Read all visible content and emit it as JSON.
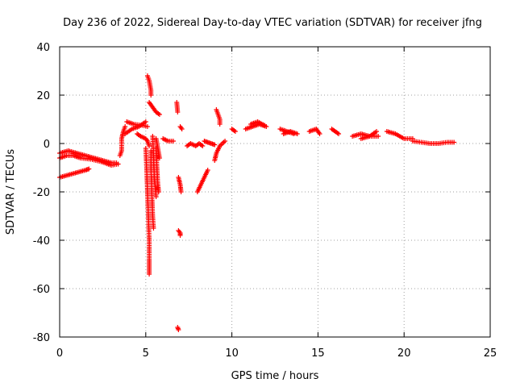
{
  "chart_data": {
    "type": "scatter",
    "title": "Day 236 of 2022, Sidereal Day-to-day VTEC variation (SDTVAR) for receiver jfng",
    "xlabel": "GPS time / hours",
    "ylabel": "SDTVAR / TECUs",
    "xlim": [
      0,
      25
    ],
    "ylim": [
      -80,
      40
    ],
    "xticks": [
      "0",
      "5",
      "10",
      "15",
      "20",
      "25"
    ],
    "yticks": [
      "-80",
      "-60",
      "-40",
      "-20",
      "0",
      "20",
      "40"
    ],
    "grid": true,
    "marker": "plus",
    "marker_color": "#ff0000",
    "segments": [
      {
        "points": [
          [
            0,
            -4
          ],
          [
            0.5,
            -3
          ],
          [
            1.0,
            -4
          ],
          [
            1.5,
            -5
          ],
          [
            2.0,
            -6
          ],
          [
            2.5,
            -7
          ],
          [
            3.0,
            -8
          ],
          [
            3.3,
            -8
          ]
        ]
      },
      {
        "points": [
          [
            0,
            -6
          ],
          [
            0.4,
            -5
          ],
          [
            0.8,
            -5
          ],
          [
            1.2,
            -6
          ],
          [
            1.8,
            -6.5
          ],
          [
            2.4,
            -7.5
          ],
          [
            3.0,
            -9
          ],
          [
            3.4,
            -8.5
          ]
        ]
      },
      {
        "points": [
          [
            0,
            -14
          ],
          [
            0.5,
            -13
          ],
          [
            1.0,
            -12
          ],
          [
            1.5,
            -11
          ],
          [
            1.7,
            -10.5
          ]
        ]
      },
      {
        "points": [
          [
            3.5,
            -5
          ],
          [
            3.6,
            -3
          ],
          [
            3.6,
            2
          ],
          [
            3.7,
            5
          ],
          [
            3.8,
            7
          ]
        ]
      },
      {
        "points": [
          [
            3.8,
            4
          ],
          [
            4.2,
            6
          ],
          [
            4.6,
            7
          ],
          [
            5.0,
            9
          ]
        ]
      },
      {
        "points": [
          [
            3.9,
            9
          ],
          [
            4.3,
            8
          ],
          [
            4.8,
            7.5
          ],
          [
            5.1,
            7
          ]
        ]
      },
      {
        "points": [
          [
            4.5,
            4
          ],
          [
            4.7,
            3
          ],
          [
            5.0,
            2
          ],
          [
            5.1,
            1
          ],
          [
            5.2,
            -1
          ]
        ]
      },
      {
        "points": [
          [
            5.1,
            28
          ],
          [
            5.2,
            26
          ],
          [
            5.25,
            24
          ],
          [
            5.3,
            22
          ],
          [
            5.3,
            20
          ]
        ]
      },
      {
        "points": [
          [
            5.2,
            17
          ],
          [
            5.4,
            15
          ],
          [
            5.6,
            13
          ],
          [
            5.8,
            12
          ]
        ]
      },
      {
        "points": [
          [
            5.0,
            -2
          ],
          [
            5.05,
            -10
          ],
          [
            5.1,
            -20
          ],
          [
            5.15,
            -30
          ],
          [
            5.2,
            -40
          ],
          [
            5.2,
            -48
          ],
          [
            5.2,
            -54
          ]
        ]
      },
      {
        "points": [
          [
            5.3,
            -3
          ],
          [
            5.3,
            -10
          ],
          [
            5.35,
            -20
          ],
          [
            5.4,
            -30
          ],
          [
            5.45,
            -35
          ]
        ]
      },
      {
        "points": [
          [
            5.4,
            3
          ],
          [
            5.45,
            -5
          ],
          [
            5.5,
            -15
          ],
          [
            5.6,
            -22
          ]
        ]
      },
      {
        "points": [
          [
            5.6,
            -2
          ],
          [
            5.65,
            -10
          ],
          [
            5.7,
            -17
          ],
          [
            5.75,
            -20
          ]
        ]
      },
      {
        "points": [
          [
            5.6,
            2
          ],
          [
            5.7,
            -2
          ],
          [
            5.8,
            -6
          ]
        ]
      },
      {
        "points": [
          [
            6.0,
            2
          ],
          [
            6.3,
            1
          ],
          [
            6.6,
            1
          ]
        ]
      },
      {
        "points": [
          [
            6.8,
            17
          ],
          [
            6.85,
            13
          ]
        ]
      },
      {
        "points": [
          [
            7.0,
            7
          ],
          [
            7.1,
            6
          ]
        ]
      },
      {
        "points": [
          [
            6.9,
            -14
          ],
          [
            7.0,
            -17
          ],
          [
            7.05,
            -20
          ]
        ]
      },
      {
        "points": [
          [
            6.9,
            -36
          ],
          [
            7.0,
            -37
          ],
          [
            7.0,
            -38
          ]
        ]
      },
      {
        "points": [
          [
            6.85,
            -76
          ],
          [
            6.9,
            -77
          ]
        ]
      },
      {
        "points": [
          [
            7.4,
            -1
          ],
          [
            7.6,
            0
          ],
          [
            7.9,
            -1
          ],
          [
            8.1,
            0
          ],
          [
            8.3,
            -1
          ]
        ]
      },
      {
        "points": [
          [
            8.4,
            1
          ],
          [
            8.6,
            0.5
          ],
          [
            8.8,
            0
          ],
          [
            9.0,
            -0.5
          ]
        ]
      },
      {
        "points": [
          [
            8.0,
            -20
          ],
          [
            8.2,
            -17
          ],
          [
            8.4,
            -14
          ],
          [
            8.6,
            -11
          ]
        ]
      },
      {
        "points": [
          [
            9.0,
            -7
          ],
          [
            9.1,
            -4
          ],
          [
            9.3,
            -1
          ],
          [
            9.6,
            1
          ]
        ]
      },
      {
        "points": [
          [
            9.1,
            14
          ],
          [
            9.2,
            12
          ],
          [
            9.3,
            10
          ],
          [
            9.3,
            8
          ]
        ]
      },
      {
        "points": [
          [
            10.0,
            6
          ],
          [
            10.2,
            5
          ]
        ]
      },
      {
        "points": [
          [
            10.8,
            6
          ],
          [
            11.2,
            7
          ],
          [
            11.6,
            8
          ],
          [
            12.0,
            7
          ]
        ]
      },
      {
        "points": [
          [
            11.1,
            8
          ],
          [
            11.5,
            9
          ],
          [
            11.9,
            7.5
          ]
        ]
      },
      {
        "points": [
          [
            12.8,
            6
          ],
          [
            13.2,
            5
          ],
          [
            13.6,
            4
          ]
        ]
      },
      {
        "points": [
          [
            13.0,
            4
          ],
          [
            13.4,
            5
          ],
          [
            13.8,
            4
          ]
        ]
      },
      {
        "points": [
          [
            14.5,
            5
          ],
          [
            14.9,
            6
          ],
          [
            15.1,
            4
          ]
        ]
      },
      {
        "points": [
          [
            15.8,
            6
          ],
          [
            16.0,
            5
          ],
          [
            16.2,
            4
          ]
        ]
      },
      {
        "points": [
          [
            17.0,
            3
          ],
          [
            17.5,
            4
          ],
          [
            18.0,
            3
          ],
          [
            18.5,
            3
          ]
        ]
      },
      {
        "points": [
          [
            17.5,
            2
          ],
          [
            18.0,
            3
          ],
          [
            18.4,
            5
          ]
        ]
      },
      {
        "points": [
          [
            19.0,
            5
          ],
          [
            19.5,
            4
          ],
          [
            20.0,
            2
          ],
          [
            20.5,
            2
          ]
        ]
      },
      {
        "points": [
          [
            20.5,
            1
          ],
          [
            21.0,
            0.5
          ],
          [
            21.5,
            0
          ],
          [
            22.0,
            0
          ],
          [
            22.5,
            0.5
          ],
          [
            22.9,
            0.5
          ]
        ]
      }
    ]
  }
}
